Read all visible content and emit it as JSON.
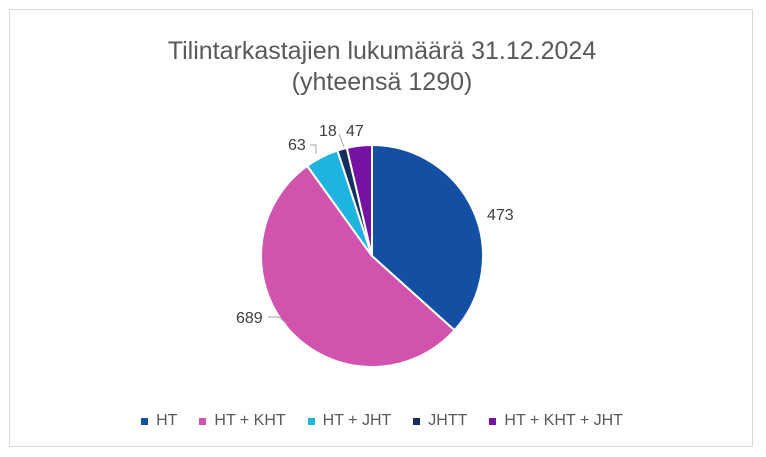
{
  "chart_data": {
    "type": "pie",
    "title_line1": "Tilintarkastajien lukumäärä 31.12.2024",
    "title_line2": "(yhteensä 1290)",
    "categories": [
      "HT",
      "HT + KHT",
      "HT + JHT",
      "JHTT",
      "HT + KHT + JHT"
    ],
    "values": [
      473,
      689,
      63,
      18,
      47
    ],
    "colors": [
      "#134fa3",
      "#d253ad",
      "#1fb3e0",
      "#172f5c",
      "#7512a3"
    ],
    "legend_position": "bottom"
  }
}
